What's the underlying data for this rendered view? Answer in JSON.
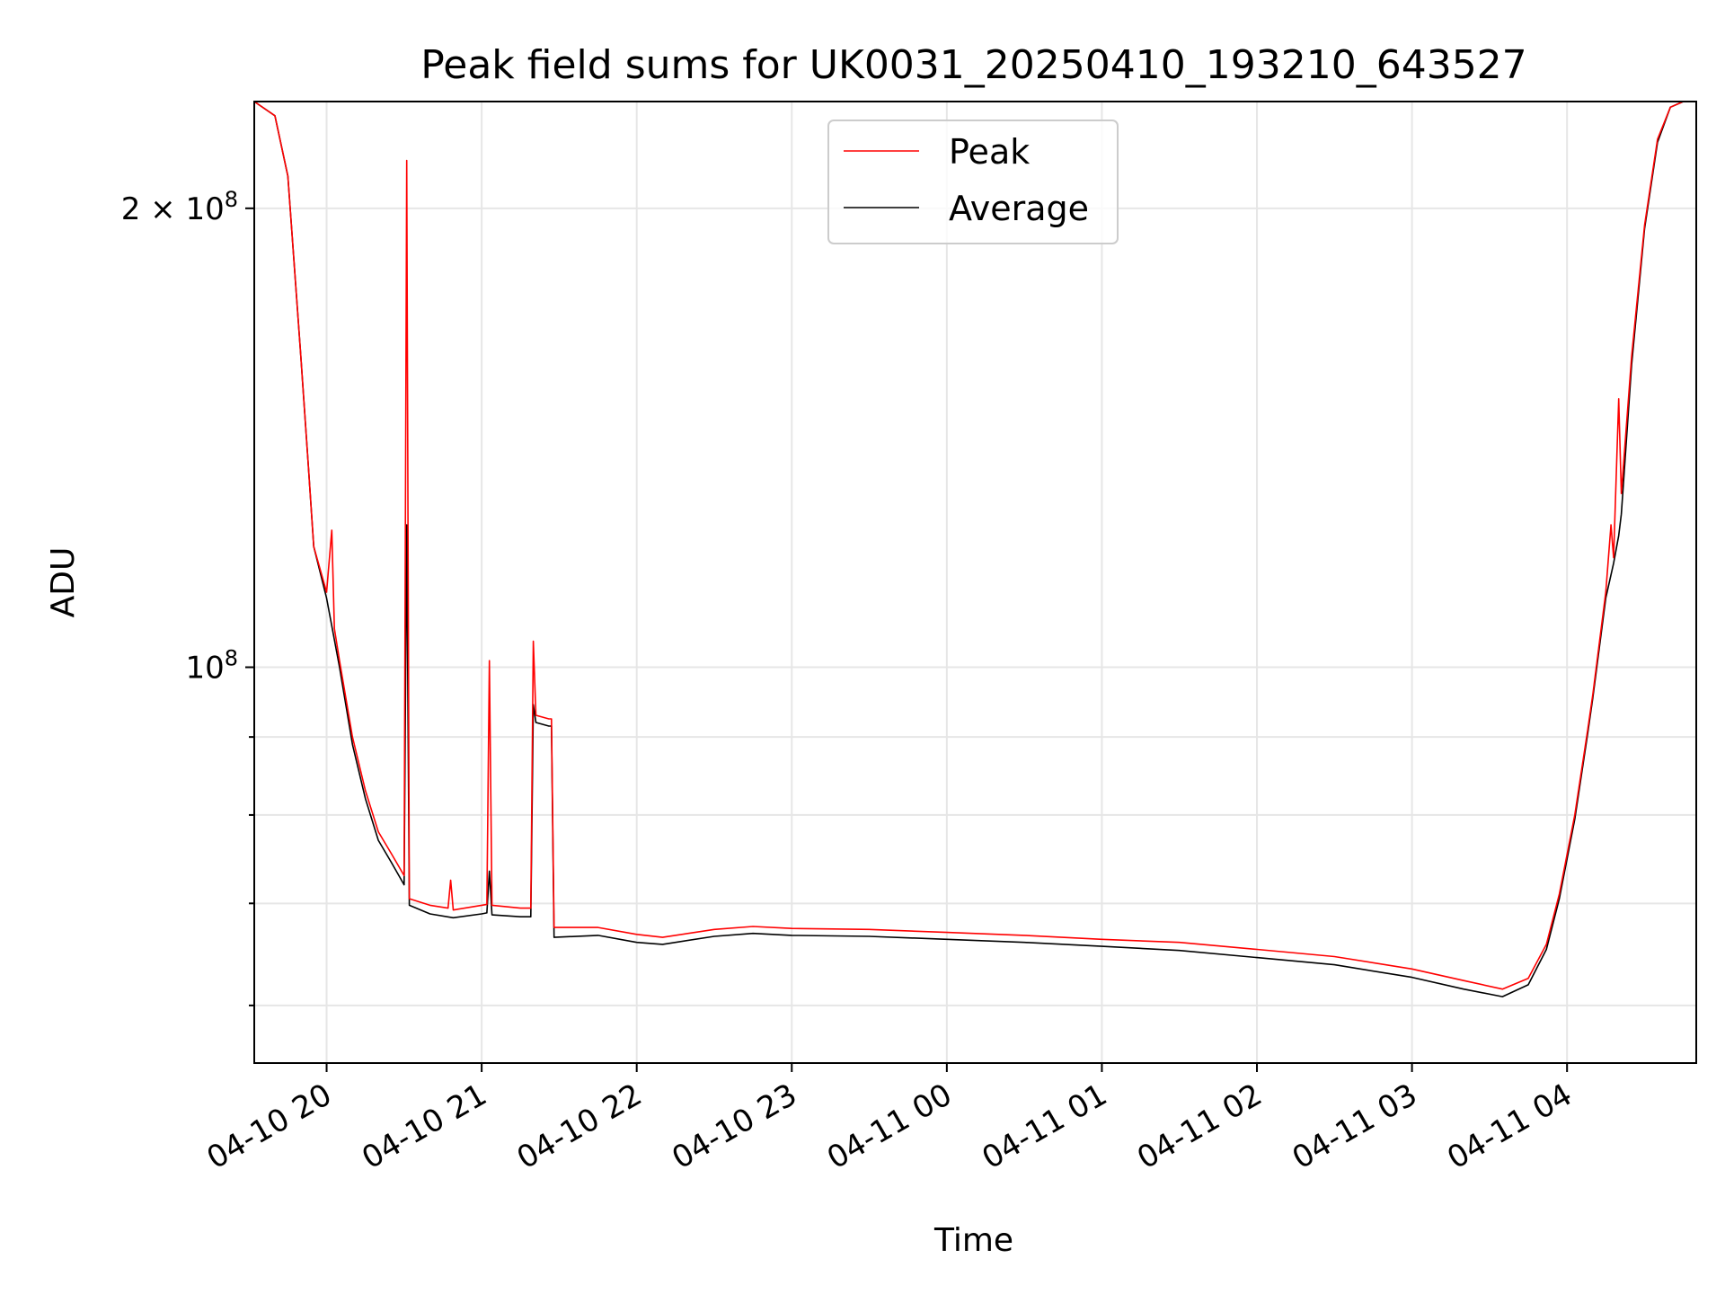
{
  "chart_data": {
    "type": "line",
    "title": "Peak field sums for UK0031_20250410_193210_643527",
    "xlabel": "Time",
    "ylabel": "ADU",
    "yscale": "log",
    "grid": true,
    "legend_position": "top-center",
    "xlim": [
      "2025-04-10 19:32",
      "2025-04-11 04:50"
    ],
    "ylim": [
      55000000,
      235000000
    ],
    "x_tick_labels": [
      "04-10 20",
      "04-10 21",
      "04-10 22",
      "04-10 23",
      "04-11 00",
      "04-11 01",
      "04-11 02",
      "04-11 03",
      "04-11 04"
    ],
    "y_tick_labels": [
      {
        "value": 100000000,
        "base": "10",
        "exp": "8",
        "prefix": ""
      },
      {
        "value": 200000000,
        "base": "10",
        "exp": "8",
        "prefix": "2 × "
      }
    ],
    "y_minor_ticks": [
      60000000,
      70000000,
      80000000,
      90000000
    ],
    "series": [
      {
        "name": "Peak",
        "color": "#ff0000",
        "points": [
          [
            "2025-04-10 19:32",
            235000000
          ],
          [
            "2025-04-10 19:40",
            230000000
          ],
          [
            "2025-04-10 19:45",
            210000000
          ],
          [
            "2025-04-10 19:50",
            160000000
          ],
          [
            "2025-04-10 19:53",
            135000000
          ],
          [
            "2025-04-10 19:55",
            120000000
          ],
          [
            "2025-04-10 20:00",
            112000000
          ],
          [
            "2025-04-10 20:02",
            123000000
          ],
          [
            "2025-04-10 20:03",
            106000000
          ],
          [
            "2025-04-10 20:05",
            101000000
          ],
          [
            "2025-04-10 20:10",
            90000000
          ],
          [
            "2025-04-10 20:15",
            83000000
          ],
          [
            "2025-04-10 20:20",
            78000000
          ],
          [
            "2025-04-10 20:25",
            75500000
          ],
          [
            "2025-04-10 20:30",
            73000000
          ],
          [
            "2025-04-10 20:31",
            215000000
          ],
          [
            "2025-04-10 20:32",
            70500000
          ],
          [
            "2025-04-10 20:40",
            69800000
          ],
          [
            "2025-04-10 20:47",
            69500000
          ],
          [
            "2025-04-10 20:48",
            72500000
          ],
          [
            "2025-04-10 20:49",
            69300000
          ],
          [
            "2025-04-10 21:00",
            69800000
          ],
          [
            "2025-04-10 21:02",
            69900000
          ],
          [
            "2025-04-10 21:03",
            101000000
          ],
          [
            "2025-04-10 21:04",
            69800000
          ],
          [
            "2025-04-10 21:15",
            69500000
          ],
          [
            "2025-04-10 21:19",
            69500000
          ],
          [
            "2025-04-10 21:20",
            104000000
          ],
          [
            "2025-04-10 21:21",
            93000000
          ],
          [
            "2025-04-10 21:26",
            92500000
          ],
          [
            "2025-04-10 21:27",
            92500000
          ],
          [
            "2025-04-10 21:28",
            67500000
          ],
          [
            "2025-04-10 21:45",
            67500000
          ],
          [
            "2025-04-10 22:00",
            66800000
          ],
          [
            "2025-04-10 22:10",
            66500000
          ],
          [
            "2025-04-10 22:30",
            67300000
          ],
          [
            "2025-04-10 22:45",
            67600000
          ],
          [
            "2025-04-10 23:00",
            67400000
          ],
          [
            "2025-04-10 23:30",
            67300000
          ],
          [
            "2025-04-11 00:00",
            67000000
          ],
          [
            "2025-04-11 00:30",
            66700000
          ],
          [
            "2025-04-11 01:00",
            66300000
          ],
          [
            "2025-04-11 01:30",
            66000000
          ],
          [
            "2025-04-11 02:00",
            65300000
          ],
          [
            "2025-04-11 02:30",
            64600000
          ],
          [
            "2025-04-11 03:00",
            63400000
          ],
          [
            "2025-04-11 03:20",
            62300000
          ],
          [
            "2025-04-11 03:35",
            61500000
          ],
          [
            "2025-04-11 03:45",
            62500000
          ],
          [
            "2025-04-11 03:52",
            65800000
          ],
          [
            "2025-04-11 03:57",
            71000000
          ],
          [
            "2025-04-11 04:03",
            80000000
          ],
          [
            "2025-04-11 04:08",
            91000000
          ],
          [
            "2025-04-11 04:10",
            96000000
          ],
          [
            "2025-04-11 04:15",
            112000000
          ],
          [
            "2025-04-11 04:17",
            124000000
          ],
          [
            "2025-04-11 04:18",
            118000000
          ],
          [
            "2025-04-11 04:20",
            150000000
          ],
          [
            "2025-04-11 04:21",
            130000000
          ],
          [
            "2025-04-11 04:25",
            160000000
          ],
          [
            "2025-04-11 04:30",
            195000000
          ],
          [
            "2025-04-11 04:35",
            222000000
          ],
          [
            "2025-04-11 04:40",
            233000000
          ],
          [
            "2025-04-11 04:45",
            235000000
          ],
          [
            "2025-04-11 04:50",
            235000000
          ]
        ]
      },
      {
        "name": "Average",
        "color": "#000000",
        "points": [
          [
            "2025-04-10 19:32",
            235000000
          ],
          [
            "2025-04-10 19:40",
            230000000
          ],
          [
            "2025-04-10 19:45",
            210000000
          ],
          [
            "2025-04-10 19:50",
            160000000
          ],
          [
            "2025-04-10 19:53",
            135000000
          ],
          [
            "2025-04-10 19:55",
            120000000
          ],
          [
            "2025-04-10 20:00",
            111000000
          ],
          [
            "2025-04-10 20:05",
            100000000
          ],
          [
            "2025-04-10 20:10",
            89000000
          ],
          [
            "2025-04-10 20:15",
            82000000
          ],
          [
            "2025-04-10 20:20",
            77000000
          ],
          [
            "2025-04-10 20:25",
            74500000
          ],
          [
            "2025-04-10 20:30",
            72000000
          ],
          [
            "2025-04-10 20:31",
            124000000
          ],
          [
            "2025-04-10 20:32",
            69800000
          ],
          [
            "2025-04-10 20:40",
            68900000
          ],
          [
            "2025-04-10 20:49",
            68500000
          ],
          [
            "2025-04-10 21:00",
            68900000
          ],
          [
            "2025-04-10 21:02",
            69000000
          ],
          [
            "2025-04-10 21:03",
            73500000
          ],
          [
            "2025-04-10 21:04",
            68800000
          ],
          [
            "2025-04-10 21:15",
            68600000
          ],
          [
            "2025-04-10 21:19",
            68600000
          ],
          [
            "2025-04-10 21:20",
            94500000
          ],
          [
            "2025-04-10 21:21",
            92000000
          ],
          [
            "2025-04-10 21:26",
            91500000
          ],
          [
            "2025-04-10 21:27",
            91500000
          ],
          [
            "2025-04-10 21:28",
            66500000
          ],
          [
            "2025-04-10 21:45",
            66700000
          ],
          [
            "2025-04-10 22:00",
            66000000
          ],
          [
            "2025-04-10 22:10",
            65800000
          ],
          [
            "2025-04-10 22:30",
            66600000
          ],
          [
            "2025-04-10 22:45",
            66900000
          ],
          [
            "2025-04-10 23:00",
            66700000
          ],
          [
            "2025-04-10 23:30",
            66600000
          ],
          [
            "2025-04-11 00:00",
            66300000
          ],
          [
            "2025-04-11 00:30",
            66000000
          ],
          [
            "2025-04-11 01:00",
            65600000
          ],
          [
            "2025-04-11 01:30",
            65200000
          ],
          [
            "2025-04-11 02:00",
            64500000
          ],
          [
            "2025-04-11 02:30",
            63800000
          ],
          [
            "2025-04-11 03:00",
            62600000
          ],
          [
            "2025-04-11 03:20",
            61500000
          ],
          [
            "2025-04-11 03:35",
            60800000
          ],
          [
            "2025-04-11 03:45",
            61900000
          ],
          [
            "2025-04-11 03:52",
            65300000
          ],
          [
            "2025-04-11 03:57",
            70500000
          ],
          [
            "2025-04-11 04:03",
            79500000
          ],
          [
            "2025-04-11 04:08",
            90500000
          ],
          [
            "2025-04-11 04:10",
            95500000
          ],
          [
            "2025-04-11 04:15",
            111000000
          ],
          [
            "2025-04-11 04:18",
            117000000
          ],
          [
            "2025-04-11 04:20",
            122000000
          ],
          [
            "2025-04-11 04:21",
            126000000
          ],
          [
            "2025-04-11 04:25",
            158000000
          ],
          [
            "2025-04-11 04:30",
            194000000
          ],
          [
            "2025-04-11 04:35",
            221000000
          ],
          [
            "2025-04-11 04:40",
            233000000
          ],
          [
            "2025-04-11 04:45",
            235000000
          ],
          [
            "2025-04-11 04:50",
            235000000
          ]
        ]
      }
    ]
  }
}
